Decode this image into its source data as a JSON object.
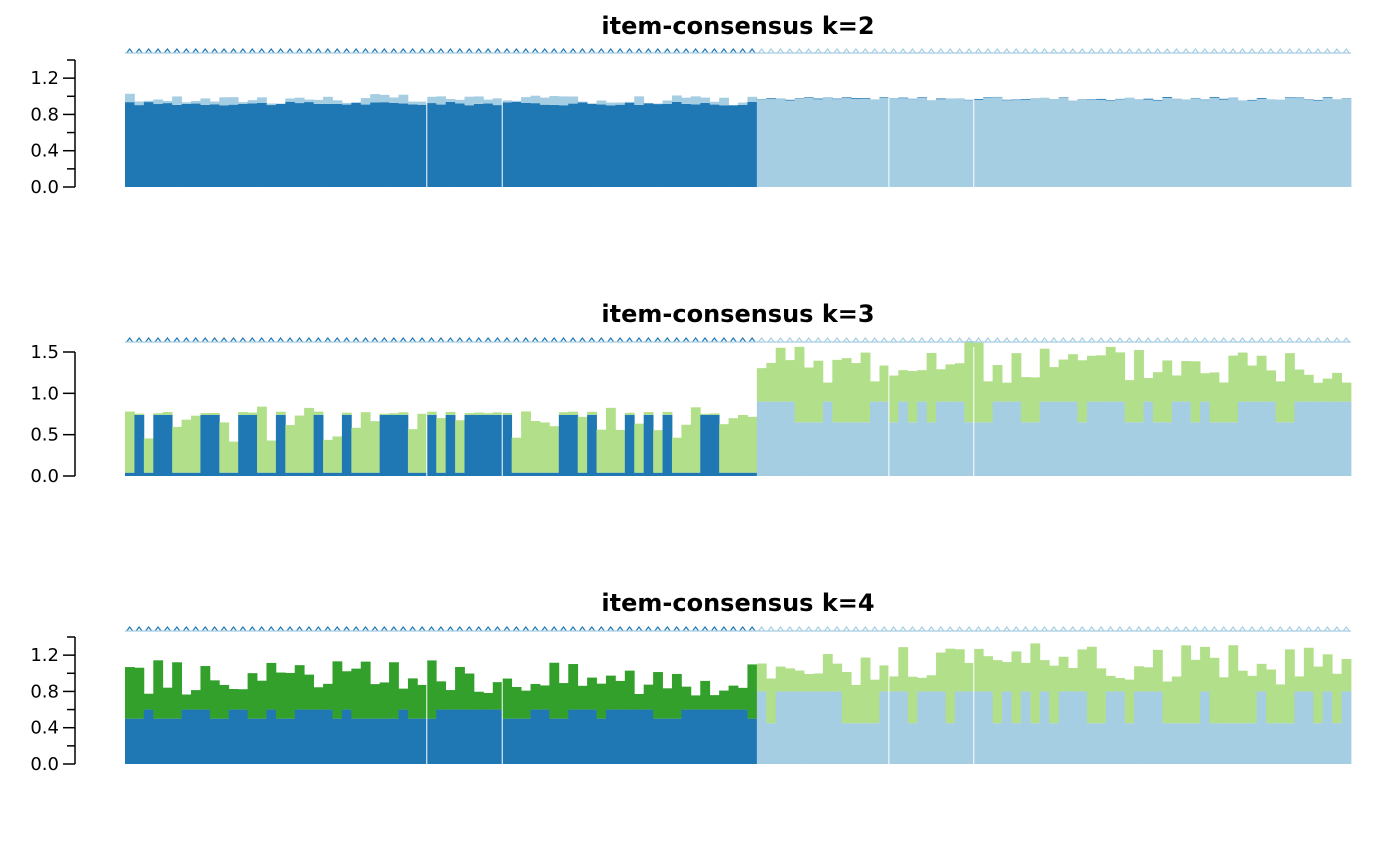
{
  "chart_data": [
    {
      "type": "bar",
      "title": "item-consensus k=2",
      "ylim": [
        0,
        1.4
      ],
      "yticks": [
        "0.0",
        "0.4",
        "0.8",
        "1.2"
      ],
      "ytick_values": [
        0,
        0.4,
        0.8,
        1.2
      ],
      "minor_tick_values": [
        0.2,
        0.6,
        1.0,
        1.4
      ],
      "n_items": 130,
      "groups": [
        {
          "start": 0,
          "end": 67,
          "dominant": "#1F78B4",
          "secondary": "#A6CEE3",
          "stack": [
            0.92,
            0.1
          ]
        },
        {
          "start": 67,
          "end": 130,
          "dominant": "#A6CEE3",
          "secondary": "#1F78B4",
          "stack": [
            0.97,
            0.01
          ]
        }
      ],
      "separators_at": [
        32,
        40,
        81,
        90
      ]
    },
    {
      "type": "bar",
      "title": "item-consensus k=3",
      "ylim": [
        0,
        1.5
      ],
      "yticks": [
        "0.0",
        "0.5",
        "1.0",
        "1.5"
      ],
      "ytick_values": [
        0,
        0.5,
        1.0,
        1.5
      ],
      "minor_tick_values": [],
      "n_items": 130,
      "groups": [
        {
          "start": 0,
          "end": 67,
          "dominant": "#1F78B4",
          "secondary": "#B2DF8A",
          "stack": [
            0.74,
            0.04
          ]
        },
        {
          "start": 67,
          "end": 130,
          "dominant": "#A6CEE3",
          "secondary": "#B2DF8A",
          "stack": [
            0.9,
            0.65
          ]
        }
      ],
      "separators_at": [
        32,
        40,
        81,
        90
      ]
    },
    {
      "type": "bar",
      "title": "item-consensus k=4",
      "ylim": [
        0,
        1.4
      ],
      "yticks": [
        "0.0",
        "0.4",
        "0.8",
        "1.2"
      ],
      "ytick_values": [
        0,
        0.4,
        0.8,
        1.2
      ],
      "minor_tick_values": [
        0.2,
        0.6,
        1.0,
        1.4
      ],
      "n_items": 130,
      "groups": [
        {
          "start": 0,
          "end": 67,
          "dominant": "#1F78B4",
          "secondary": "#33A02C",
          "stack": [
            0.6,
            0.5
          ]
        },
        {
          "start": 67,
          "end": 130,
          "dominant": "#A6CEE3",
          "secondary": "#B2DF8A",
          "stack": [
            0.8,
            0.45
          ]
        }
      ],
      "separators_at": [
        32,
        40,
        81,
        90
      ]
    }
  ],
  "colors": {
    "dark_blue": "#1F78B4",
    "light_blue": "#A6CEE3",
    "dark_green": "#33A02C",
    "light_green": "#B2DF8A",
    "axis": "#000000"
  }
}
